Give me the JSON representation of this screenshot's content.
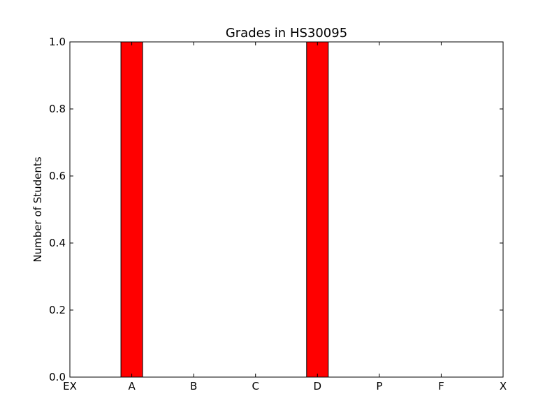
{
  "chart_data": {
    "type": "bar",
    "title": "Grades in HS30095",
    "xlabel": "",
    "ylabel": "Number of Students",
    "categories": [
      "EX",
      "A",
      "B",
      "C",
      "D",
      "P",
      "F",
      "X"
    ],
    "values": [
      0,
      1,
      0,
      0,
      1,
      0,
      0,
      0
    ],
    "ylim": [
      0,
      1.0
    ],
    "yticks": [
      "0.0",
      "0.2",
      "0.4",
      "0.6",
      "0.8",
      "1.0"
    ],
    "bar_color": "#ff0000",
    "grid": false
  }
}
